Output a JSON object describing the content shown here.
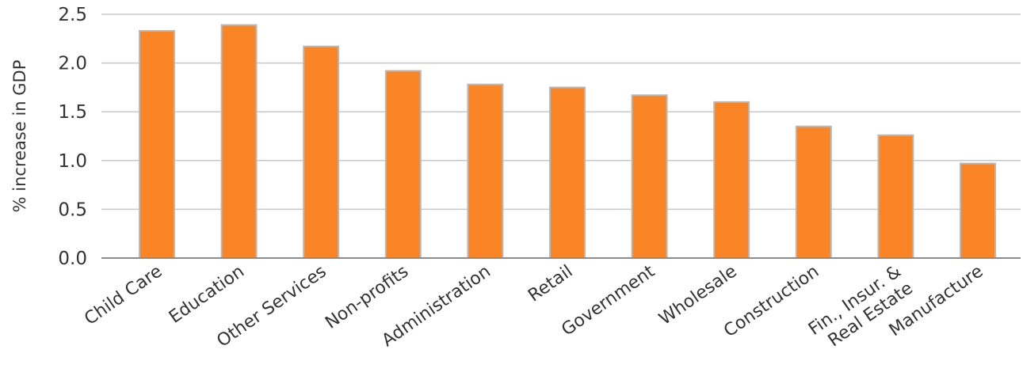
{
  "chart_data": {
    "type": "bar",
    "title": "",
    "xlabel": "",
    "ylabel": "% increase in GDP",
    "categories": [
      "Child Care",
      "Education",
      "Other Services",
      "Non-profits",
      "Administration",
      "Retail",
      "Government",
      "Wholesale",
      "Construction",
      "Fin., Insur. & Real Estate",
      "Manufacture"
    ],
    "category_lines": [
      [
        "Child Care"
      ],
      [
        "Education"
      ],
      [
        "Other Services"
      ],
      [
        "Non-profits"
      ],
      [
        "Administration"
      ],
      [
        "Retail"
      ],
      [
        "Government"
      ],
      [
        "Wholesale"
      ],
      [
        "Construction"
      ],
      [
        "Fin., Insur. &",
        "Real Estate"
      ],
      [
        "Manufacture"
      ]
    ],
    "values": [
      2.33,
      2.39,
      2.17,
      1.92,
      1.78,
      1.75,
      1.67,
      1.6,
      1.35,
      1.26,
      0.97
    ],
    "ylim": [
      0,
      2.5
    ],
    "yticks": [
      "0.0",
      "0.5",
      "1.0",
      "1.5",
      "2.0",
      "2.5"
    ],
    "grid": true,
    "legend": "none",
    "bar_color": "#f98526"
  }
}
